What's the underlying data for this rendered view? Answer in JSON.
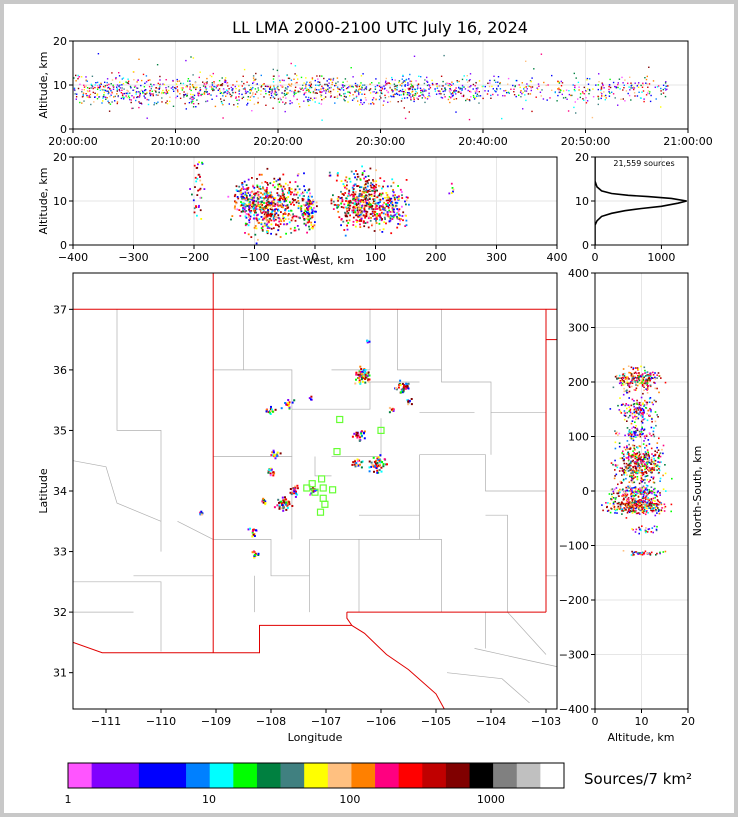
{
  "title": "LL LMA 2000-2100 UTC July 16, 2024",
  "chart_data": [
    {
      "type": "scatter",
      "panel": "altitude-vs-time",
      "ylabel": "Altitude, km",
      "ylim": [
        0,
        20
      ],
      "y_ticks": [
        "0",
        "10",
        "20"
      ],
      "x_ticks": [
        "20:00:00",
        "20:10:00",
        "20:20:00",
        "20:30:00",
        "20:40:00",
        "20:50:00",
        "21:00:00"
      ],
      "xlim_minutes": [
        0,
        60
      ],
      "active_minutes": [
        0,
        58
      ]
    },
    {
      "type": "scatter",
      "panel": "altitude-vs-east-west",
      "xlabel": "East-West, km",
      "ylabel": "Altitude, km",
      "xlim": [
        -400,
        400
      ],
      "ylim": [
        0,
        20
      ],
      "x_ticks": [
        "−400",
        "−300",
        "−200",
        "−100",
        "0",
        "100",
        "200",
        "300",
        "400"
      ],
      "y_ticks": [
        "0",
        "10",
        "20"
      ],
      "clusters": [
        {
          "x": -195,
          "y": 14,
          "spread_x": 5,
          "spread_y": 4,
          "n": 40
        },
        {
          "x": -115,
          "y": 10,
          "spread_x": 12,
          "spread_y": 2,
          "n": 120
        },
        {
          "x": -75,
          "y": 9,
          "spread_x": 25,
          "spread_y": 3,
          "n": 500
        },
        {
          "x": -12,
          "y": 8,
          "spread_x": 6,
          "spread_y": 2,
          "n": 120
        },
        {
          "x": 80,
          "y": 10,
          "spread_x": 25,
          "spread_y": 3,
          "n": 500
        },
        {
          "x": 130,
          "y": 8,
          "spread_x": 12,
          "spread_y": 2,
          "n": 90
        },
        {
          "x": 225,
          "y": 13,
          "spread_x": 3,
          "spread_y": 1,
          "n": 6
        }
      ]
    },
    {
      "type": "line",
      "panel": "altitude-histogram",
      "annotation": "21,559 sources",
      "xlim": [
        0,
        1400
      ],
      "ylim": [
        0,
        20
      ],
      "x_ticks": [
        "0",
        "1000"
      ],
      "y_ticks": [
        "0",
        "10",
        "20"
      ],
      "points": [
        {
          "x": 0,
          "y": 0
        },
        {
          "x": 0,
          "y": 4.5
        },
        {
          "x": 30,
          "y": 5.5
        },
        {
          "x": 100,
          "y": 6.5
        },
        {
          "x": 250,
          "y": 7.2
        },
        {
          "x": 450,
          "y": 7.8
        },
        {
          "x": 700,
          "y": 8.3
        },
        {
          "x": 1000,
          "y": 8.8
        },
        {
          "x": 1250,
          "y": 9.5
        },
        {
          "x": 1380,
          "y": 10
        },
        {
          "x": 1150,
          "y": 10.6
        },
        {
          "x": 800,
          "y": 11
        },
        {
          "x": 500,
          "y": 11.3
        },
        {
          "x": 250,
          "y": 11.7
        },
        {
          "x": 100,
          "y": 12.3
        },
        {
          "x": 30,
          "y": 13.2
        },
        {
          "x": 0,
          "y": 14.5
        },
        {
          "x": 0,
          "y": 20
        }
      ]
    },
    {
      "type": "scatter",
      "panel": "plan-view-map",
      "xlabel": "Longitude",
      "ylabel": "Latitude",
      "xlim": [
        -111.6,
        -102.8
      ],
      "ylim": [
        30.4,
        37.6
      ],
      "x_ticks": [
        "−111",
        "−110",
        "−109",
        "−108",
        "−107",
        "−106",
        "−105",
        "−104",
        "−103"
      ],
      "y_ticks": [
        "31",
        "32",
        "33",
        "34",
        "35",
        "36",
        "37"
      ],
      "clusters": [
        {
          "lon": -106.35,
          "lat": 35.92,
          "r": 0.07,
          "n": 60
        },
        {
          "lon": -105.62,
          "lat": 35.73,
          "r": 0.06,
          "n": 35
        },
        {
          "lon": -105.5,
          "lat": 35.5,
          "r": 0.03,
          "n": 10
        },
        {
          "lon": -106.4,
          "lat": 34.95,
          "r": 0.06,
          "n": 25
        },
        {
          "lon": -106.08,
          "lat": 34.45,
          "r": 0.08,
          "n": 50
        },
        {
          "lon": -106.45,
          "lat": 34.47,
          "r": 0.05,
          "n": 20
        },
        {
          "lon": -108.03,
          "lat": 35.35,
          "r": 0.04,
          "n": 18
        },
        {
          "lon": -107.7,
          "lat": 35.45,
          "r": 0.05,
          "n": 15
        },
        {
          "lon": -107.93,
          "lat": 34.62,
          "r": 0.04,
          "n": 18
        },
        {
          "lon": -108.0,
          "lat": 34.32,
          "r": 0.04,
          "n": 15
        },
        {
          "lon": -107.8,
          "lat": 33.8,
          "r": 0.06,
          "n": 45
        },
        {
          "lon": -107.6,
          "lat": 34.02,
          "r": 0.05,
          "n": 25
        },
        {
          "lon": -108.13,
          "lat": 33.85,
          "r": 0.03,
          "n": 10
        },
        {
          "lon": -107.25,
          "lat": 34.02,
          "r": 0.04,
          "n": 20
        },
        {
          "lon": -108.35,
          "lat": 33.35,
          "r": 0.05,
          "n": 12
        },
        {
          "lon": -108.3,
          "lat": 32.95,
          "r": 0.04,
          "n": 12
        },
        {
          "lon": -109.3,
          "lat": 33.63,
          "r": 0.03,
          "n": 8
        },
        {
          "lon": -105.83,
          "lat": 35.35,
          "r": 0.03,
          "n": 8
        },
        {
          "lon": -106.25,
          "lat": 36.5,
          "r": 0.02,
          "n": 4
        },
        {
          "lon": -107.3,
          "lat": 35.55,
          "r": 0.02,
          "n": 4
        }
      ],
      "stations": [
        {
          "lon": -106.75,
          "lat": 35.18
        },
        {
          "lon": -106.0,
          "lat": 35.0
        },
        {
          "lon": -106.8,
          "lat": 34.65
        },
        {
          "lon": -107.35,
          "lat": 34.05
        },
        {
          "lon": -107.25,
          "lat": 34.12
        },
        {
          "lon": -107.08,
          "lat": 34.2
        },
        {
          "lon": -107.05,
          "lat": 34.05
        },
        {
          "lon": -107.2,
          "lat": 33.98
        },
        {
          "lon": -106.88,
          "lat": 34.02
        },
        {
          "lon": -107.05,
          "lat": 33.88
        },
        {
          "lon": -107.02,
          "lat": 33.78
        },
        {
          "lon": -107.1,
          "lat": 33.65
        }
      ]
    },
    {
      "type": "scatter",
      "panel": "north-south-vs-altitude",
      "xlabel": "Altitude, km",
      "ylabel": "North-South, km",
      "xlim": [
        0,
        20
      ],
      "ylim": [
        -400,
        400
      ],
      "x_ticks": [
        "0",
        "10",
        "20"
      ],
      "y_ticks": [
        "−400",
        "−300",
        "−200",
        "−100",
        "0",
        "100",
        "200",
        "300",
        "400"
      ],
      "clusters": [
        {
          "x": 9,
          "y": 205,
          "spread_x": 2.5,
          "spread_y": 10,
          "n": 220
        },
        {
          "x": 9,
          "y": 150,
          "spread_x": 2,
          "spread_y": 12,
          "n": 140
        },
        {
          "x": 9,
          "y": 105,
          "spread_x": 2,
          "spread_y": 6,
          "n": 80
        },
        {
          "x": 9.5,
          "y": 50,
          "spread_x": 2.5,
          "spread_y": 20,
          "n": 420
        },
        {
          "x": 9,
          "y": 0,
          "spread_x": 2.5,
          "spread_y": 5,
          "n": 150
        },
        {
          "x": 9,
          "y": -25,
          "spread_x": 3,
          "spread_y": 8,
          "n": 350
        },
        {
          "x": 10,
          "y": -70,
          "spread_x": 1.5,
          "spread_y": 3,
          "n": 25
        },
        {
          "x": 10,
          "y": -113,
          "spread_x": 2,
          "spread_y": 2,
          "n": 40
        }
      ]
    }
  ],
  "colorbar": {
    "label": "Sources/7 km²",
    "tick_labels": [
      "1",
      "10",
      "100",
      "1000"
    ],
    "colors": [
      "#ff55ff",
      "#8000ff",
      "#8000ff",
      "#0000ff",
      "#0000ff",
      "#0080ff",
      "#00ffff",
      "#00ff00",
      "#008040",
      "#408080",
      "#ffff00",
      "#ffc080",
      "#ff8000",
      "#ff0080",
      "#ff0000",
      "#c00000",
      "#800000",
      "#000000",
      "#808080",
      "#c0c0c0",
      "#ffffff"
    ]
  },
  "colors": {
    "state_boundary": "#e00000",
    "county_lines": "#b0b0b0",
    "station_markers": "#66ff33"
  }
}
